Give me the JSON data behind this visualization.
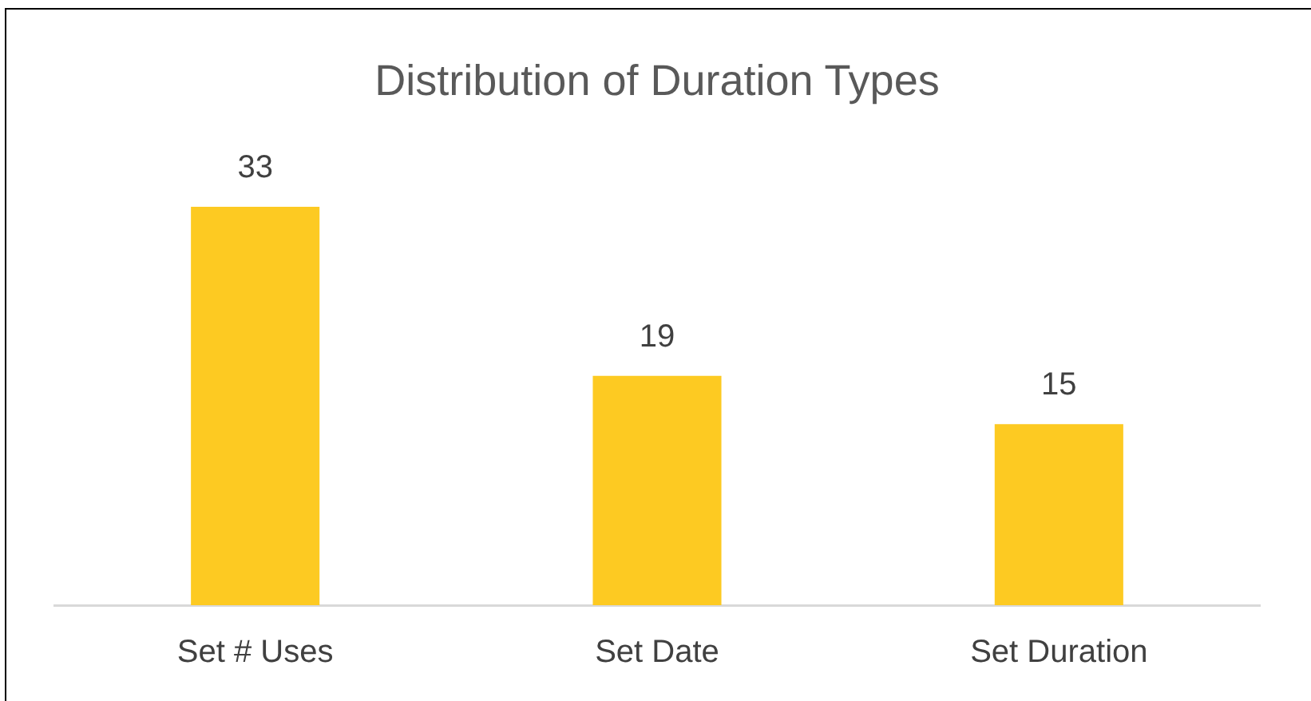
{
  "chart_data": {
    "type": "bar",
    "title": "Distribution of Duration Types",
    "categories": [
      "Set # Uses",
      "Set Date",
      "Set Duration"
    ],
    "values": [
      33,
      19,
      15
    ],
    "color": "#fdca22",
    "data_labels": true
  }
}
